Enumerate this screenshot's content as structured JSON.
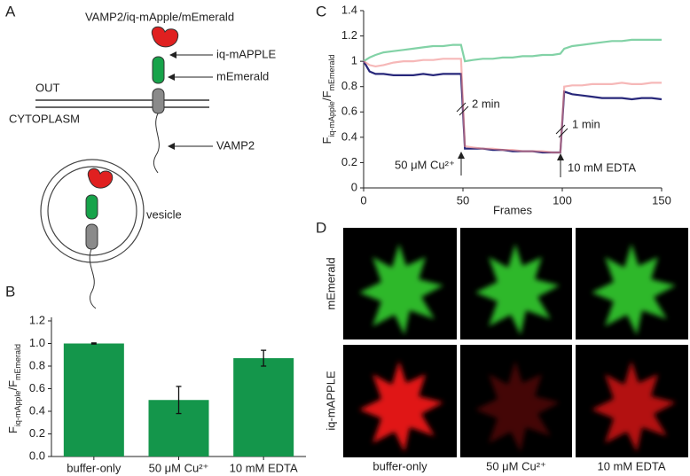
{
  "panels": {
    "a": "A",
    "b": "B",
    "c": "C",
    "d": "D"
  },
  "diagram": {
    "title": "VAMP2/iq-mApple/mEmerald",
    "labels": [
      "iq-mAPPLE",
      "mEmerald",
      "OUT",
      "CYTOPLASM",
      "VAMP2",
      "vesicle"
    ]
  },
  "chart_data": [
    {
      "type": "bar",
      "y_label": [
        {
          "text": "F"
        },
        {
          "text": "iq-mApple",
          "sub": true
        },
        {
          "text": "/F"
        },
        {
          "text": "mEmerald",
          "sub": true
        }
      ],
      "categories": [
        "buffer-only",
        "50 μM Cu²⁺",
        "10 mM EDTA"
      ],
      "values": [
        1.0,
        0.5,
        0.87
      ],
      "errors": [
        0.005,
        0.12,
        0.07
      ],
      "color": "#14964b",
      "ylim": [
        0,
        1.2
      ],
      "yticks": [
        {
          "value": 0,
          "label": "0.0"
        },
        0.2,
        0.4,
        0.6,
        0.8,
        {
          "value": 1,
          "label": "1.0"
        },
        1.2
      ]
    },
    {
      "type": "line",
      "x_label": "Frames",
      "y_label": [
        {
          "text": "F"
        },
        {
          "text": "iq-mApple",
          "sub": true
        },
        {
          "text": "/F"
        },
        {
          "text": "mEmerald",
          "sub": true
        }
      ],
      "x": [
        0,
        3,
        6,
        10,
        15,
        20,
        25,
        30,
        35,
        40,
        45,
        49,
        51,
        55,
        60,
        65,
        70,
        75,
        80,
        85,
        90,
        95,
        99,
        101,
        105,
        110,
        115,
        120,
        125,
        130,
        135,
        140,
        145,
        150
      ],
      "series": [
        {
          "color": "#82d2a6",
          "values": [
            1.0,
            1.03,
            1.05,
            1.07,
            1.08,
            1.09,
            1.1,
            1.11,
            1.12,
            1.12,
            1.13,
            1.13,
            1.0,
            1.01,
            1.02,
            1.02,
            1.03,
            1.03,
            1.04,
            1.04,
            1.05,
            1.05,
            1.06,
            1.1,
            1.12,
            1.13,
            1.14,
            1.15,
            1.16,
            1.16,
            1.17,
            1.17,
            1.17,
            1.17
          ]
        },
        {
          "color": "#27277a",
          "values": [
            1.0,
            0.92,
            0.9,
            0.9,
            0.89,
            0.89,
            0.89,
            0.9,
            0.89,
            0.9,
            0.9,
            0.9,
            0.31,
            0.31,
            0.31,
            0.3,
            0.3,
            0.29,
            0.29,
            0.29,
            0.28,
            0.28,
            0.28,
            0.76,
            0.74,
            0.73,
            0.72,
            0.71,
            0.71,
            0.71,
            0.7,
            0.71,
            0.71,
            0.7
          ]
        },
        {
          "color": "#f08888",
          "values": [
            1.0,
            0.97,
            0.96,
            0.97,
            0.99,
            1.0,
            1.0,
            1.01,
            1.01,
            1.02,
            1.02,
            1.02,
            0.33,
            0.32,
            0.31,
            0.31,
            0.3,
            0.3,
            0.29,
            0.29,
            0.29,
            0.28,
            0.28,
            0.8,
            0.81,
            0.81,
            0.82,
            0.82,
            0.82,
            0.83,
            0.82,
            0.82,
            0.83,
            0.83
          ]
        }
      ],
      "annotations": [
        "2 min",
        "1 min",
        "50 μM Cu²⁺",
        "10 mM EDTA"
      ],
      "xlim": [
        0,
        150
      ],
      "xticks": [
        0,
        50,
        100,
        150
      ],
      "ylim": [
        0,
        1.4
      ],
      "yticks": [
        0,
        0.2,
        0.4,
        0.6,
        0.8,
        1,
        1.2,
        1.4
      ]
    }
  ],
  "images": {
    "rows": [
      "mEmerald",
      "iq-mAPPLE"
    ],
    "columns": [
      "buffer-only",
      "50 μM Cu²⁺",
      "10 mM EDTA"
    ]
  }
}
